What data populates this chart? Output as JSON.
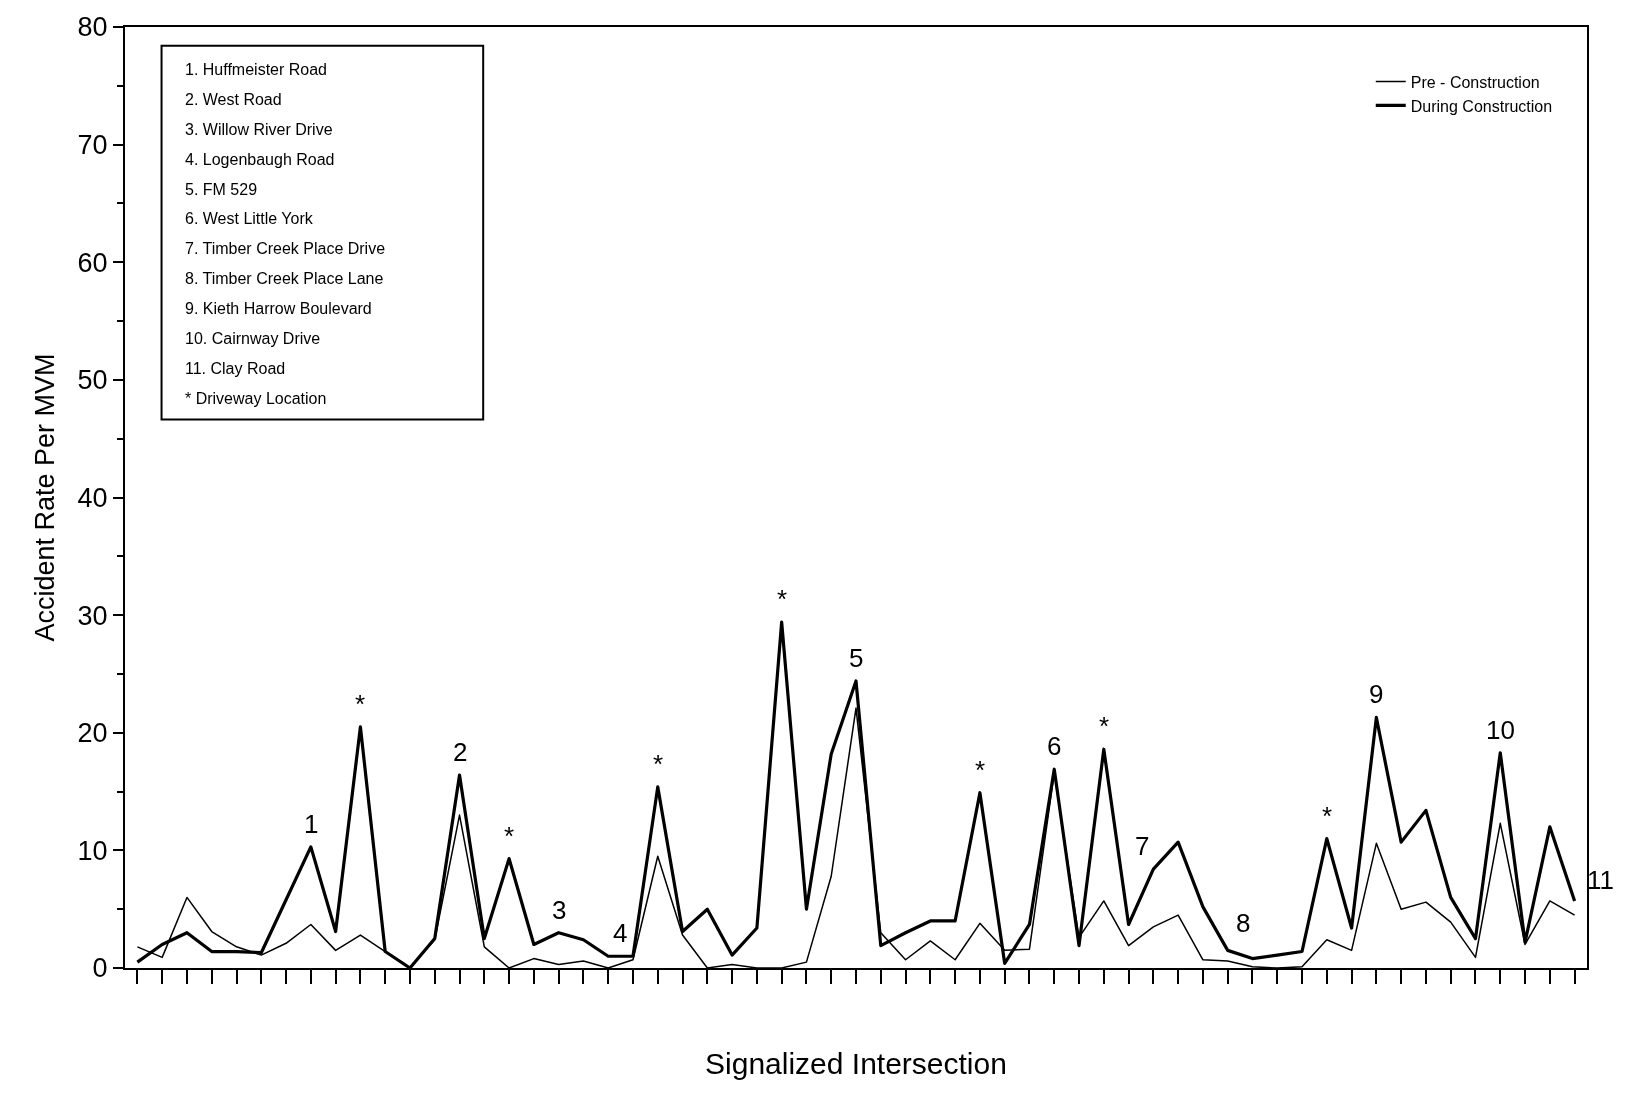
{
  "chart_data": {
    "type": "line",
    "xlabel": "Signalized Intersection",
    "ylabel": "Accident Rate Per MVM",
    "categories": [
      null,
      null,
      null,
      null,
      null,
      null,
      null,
      null,
      null,
      null,
      null,
      null,
      null,
      null,
      null,
      null,
      null,
      null,
      null,
      null,
      null,
      null,
      null,
      null,
      null,
      null,
      null,
      null,
      null,
      null,
      null,
      null,
      null,
      null,
      null,
      null,
      null,
      null,
      null,
      null,
      null,
      null,
      null,
      null,
      null,
      null,
      null,
      null,
      null,
      null,
      null,
      null,
      null,
      null,
      null,
      null,
      null,
      null,
      null
    ],
    "series": [
      {
        "name": "Pre - Construction",
        "color": "#000000",
        "values": [
          1.8,
          0.9,
          6.0,
          3.1,
          1.8,
          1.1,
          2.1,
          3.7,
          1.5,
          2.8,
          1.4,
          0,
          2.4,
          13.0,
          1.8,
          0,
          0.8,
          0.3,
          0.6,
          0,
          0.7,
          9.5,
          2.8,
          0,
          0.3,
          0,
          0,
          0.5,
          7.8,
          22.1,
          3.0,
          0.7,
          2.3,
          0.7,
          3.8,
          1.5,
          1.6,
          16.6,
          2.6,
          5.7,
          1.9,
          3.5,
          4.5,
          0.7,
          0.6,
          0.1,
          0,
          0.1,
          2.4,
          1.5,
          10.6,
          5.0,
          5.6,
          3.9,
          0.9,
          12.3,
          2.0,
          5.7,
          4.5
        ]
      },
      {
        "name": "During Construction",
        "color": "#000000",
        "values": [
          0.5,
          2.0,
          3.0,
          1.4,
          1.4,
          1.3,
          5.8,
          10.3,
          3.1,
          20.5,
          1.4,
          0,
          2.5,
          16.4,
          2.5,
          9.3,
          2.0,
          3.0,
          2.4,
          1.0,
          1.0,
          15.4,
          3.1,
          5.0,
          1.1,
          3.4,
          29.4,
          5.0,
          18.2,
          24.4,
          1.9,
          3.0,
          4.0,
          4.0,
          14.9,
          0.4,
          3.7,
          16.9,
          1.9,
          18.6,
          3.7,
          8.4,
          10.7,
          5.2,
          1.5,
          0.8,
          1.1,
          1.4,
          11.0,
          3.4,
          21.3,
          10.7,
          13.4,
          6.0,
          2.5,
          18.3,
          2.2,
          12.0,
          5.7
        ]
      }
    ],
    "ylim": [
      0,
      80
    ],
    "yticks": [
      0,
      10,
      20,
      30,
      40,
      50,
      60,
      70,
      80
    ],
    "legend": "top right",
    "tick_labels": "y",
    "marker": "none",
    "line_style": "solid",
    "annotations": [
      "1. Huffmeister Road",
      "2. West Road",
      "3. Willow River Drive",
      "4. Logenbaugh Road",
      "5. FM 529",
      "6. West Little York",
      "7. Timber Creek Place Drive",
      "8. Timber Creek Place Lane",
      "9. Kieth Harrow Boulevard",
      "10. Cairnway Drive",
      "11. Clay Road",
      "* Driveway Location",
      "1",
      "*",
      "2",
      "*",
      "3",
      "4",
      "*",
      "*",
      "5",
      "*",
      "6",
      "*",
      "7",
      "8",
      "*",
      "9",
      "10",
      "11"
    ]
  }
}
